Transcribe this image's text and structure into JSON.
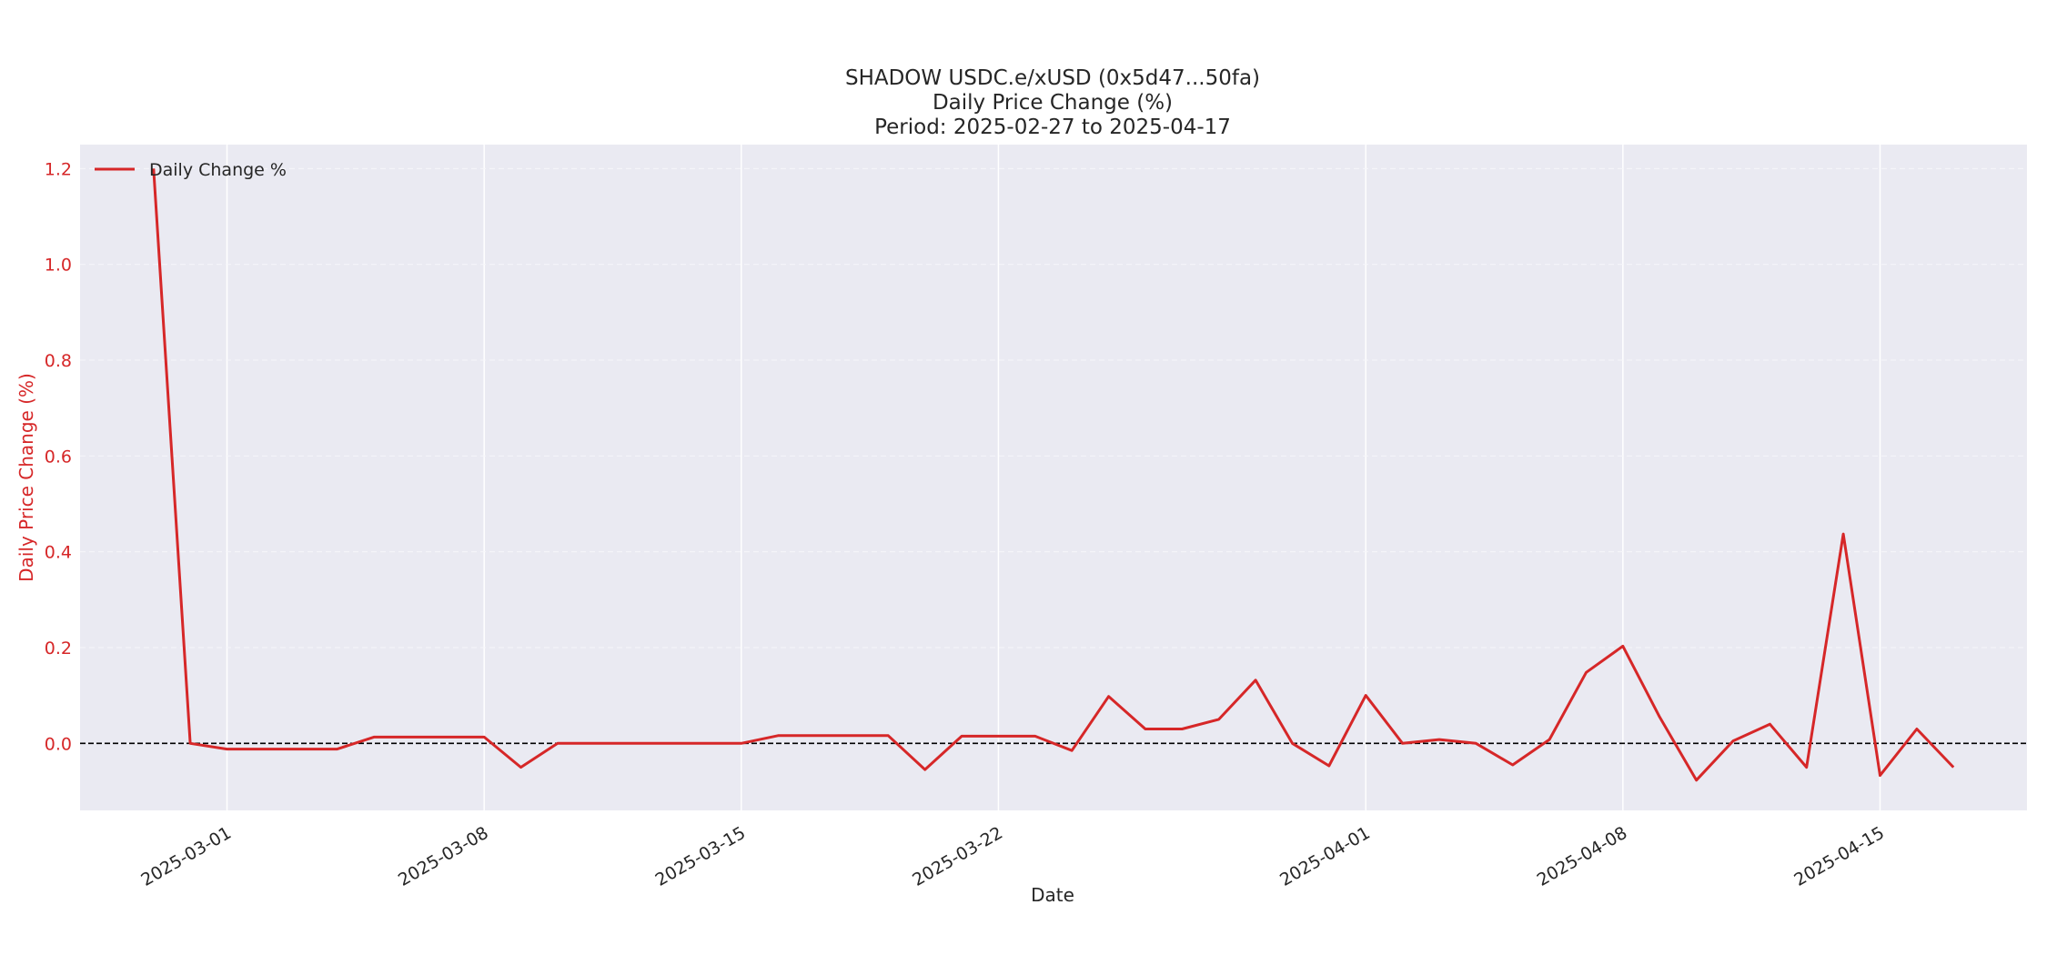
{
  "chart_data": {
    "type": "line",
    "title_lines": [
      "SHADOW USDC.e/xUSD (0x5d47...50fa)",
      "Daily Price Change (%)",
      "Period: 2025-02-27 to 2025-04-17"
    ],
    "xlabel": "Date",
    "ylabel": "Daily Price Change (%)",
    "xlim": [
      "2025-02-25",
      "2025-04-19"
    ],
    "ylim": [
      -0.14,
      1.25
    ],
    "x_ticks": [
      "2025-03-01",
      "2025-03-08",
      "2025-03-15",
      "2025-03-22",
      "2025-04-01",
      "2025-04-08",
      "2025-04-15"
    ],
    "y_ticks": [
      0.0,
      0.2,
      0.4,
      0.6,
      0.8,
      1.0,
      1.2
    ],
    "y_tick_labels": [
      "0.0",
      "0.2",
      "0.4",
      "0.6",
      "0.8",
      "1.0",
      "1.2"
    ],
    "grid": true,
    "legend_position": "top-left",
    "reference_line": {
      "y": 0.0,
      "style": "dashed",
      "color": "#000000"
    },
    "colors": {
      "series": "#d62728",
      "ylabel": "#d62728",
      "plot_bg": "#eaeaf2",
      "grid": "#ffffff"
    },
    "series": [
      {
        "name": "Daily Change %",
        "color": "#d62728",
        "x": [
          "2025-02-27",
          "2025-02-28",
          "2025-03-01",
          "2025-03-02",
          "2025-03-03",
          "2025-03-04",
          "2025-03-05",
          "2025-03-06",
          "2025-03-07",
          "2025-03-08",
          "2025-03-09",
          "2025-03-10",
          "2025-03-11",
          "2025-03-12",
          "2025-03-13",
          "2025-03-14",
          "2025-03-15",
          "2025-03-16",
          "2025-03-17",
          "2025-03-18",
          "2025-03-19",
          "2025-03-20",
          "2025-03-21",
          "2025-03-22",
          "2025-03-23",
          "2025-03-24",
          "2025-03-25",
          "2025-03-26",
          "2025-03-27",
          "2025-03-28",
          "2025-03-29",
          "2025-03-30",
          "2025-03-31",
          "2025-04-01",
          "2025-04-02",
          "2025-04-03",
          "2025-04-04",
          "2025-04-05",
          "2025-04-06",
          "2025-04-07",
          "2025-04-08",
          "2025-04-09",
          "2025-04-10",
          "2025-04-11",
          "2025-04-12",
          "2025-04-13",
          "2025-04-14",
          "2025-04-15",
          "2025-04-16",
          "2025-04-17"
        ],
        "y": [
          1.2,
          0.0,
          -0.012,
          -0.012,
          -0.012,
          -0.012,
          0.013,
          0.013,
          0.013,
          0.013,
          -0.05,
          0.0,
          0.0,
          0.0,
          0.0,
          0.0,
          0.0,
          0.016,
          0.016,
          0.016,
          0.016,
          -0.055,
          0.015,
          0.015,
          0.015,
          -0.015,
          0.098,
          0.03,
          0.03,
          0.05,
          0.132,
          0.0,
          -0.047,
          0.1,
          0.0,
          0.008,
          0.0,
          -0.045,
          0.008,
          0.148,
          0.203,
          0.055,
          -0.077,
          0.005,
          0.04,
          -0.05,
          0.437,
          -0.067,
          0.03,
          -0.05
        ]
      }
    ]
  }
}
